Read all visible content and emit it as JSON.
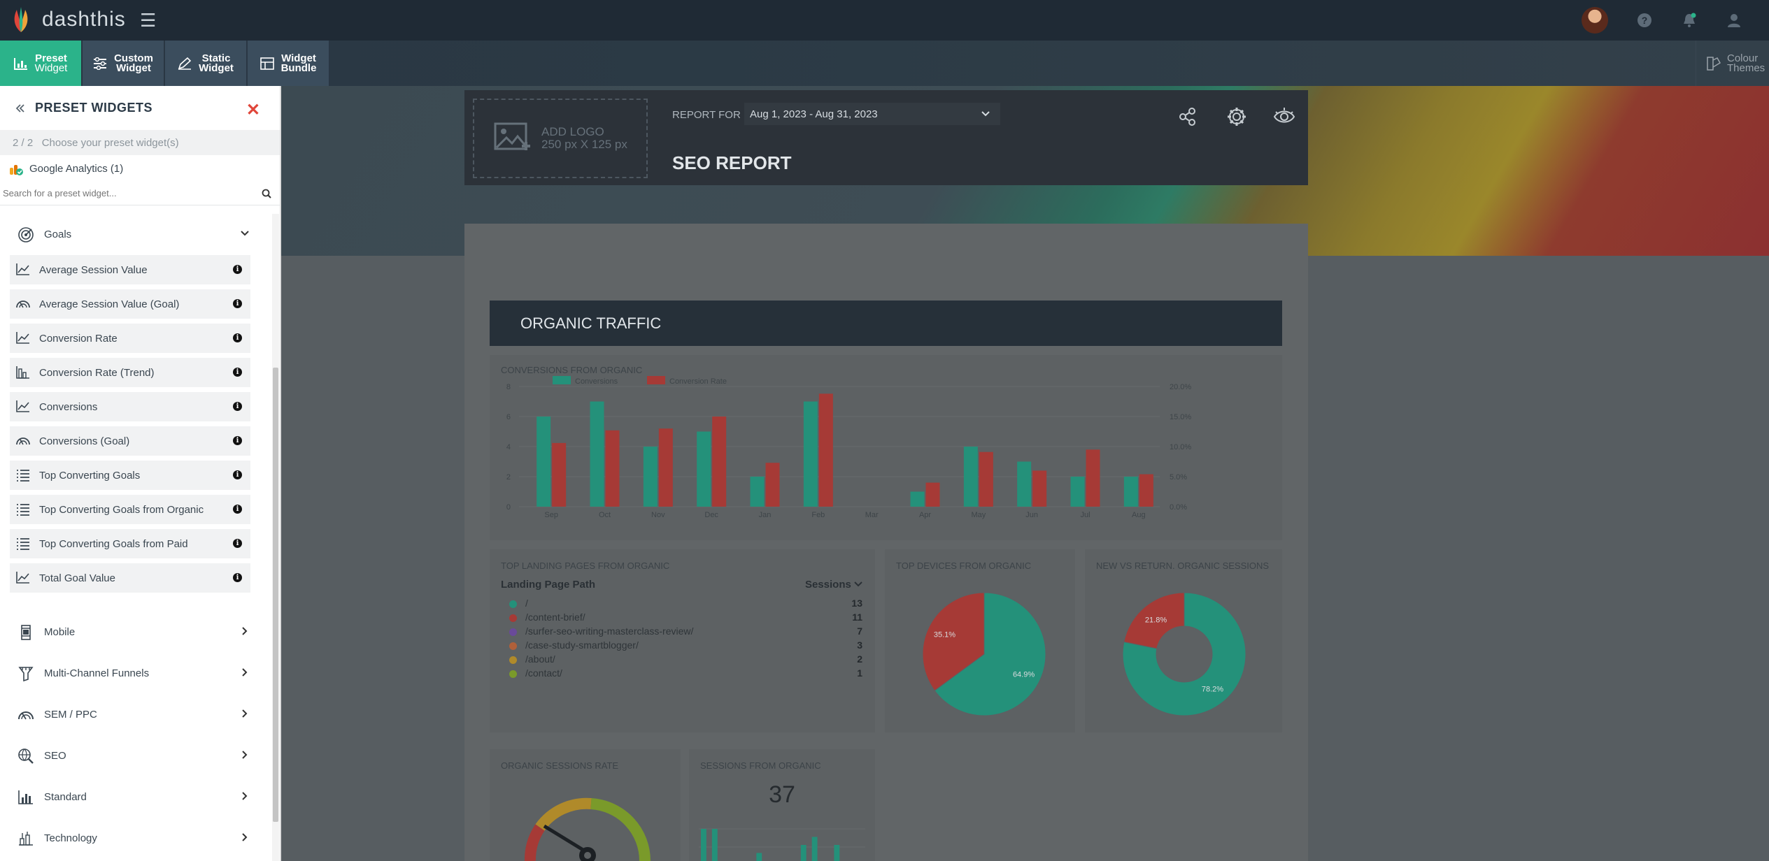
{
  "app": {
    "name": "dashthis"
  },
  "toolbar": {
    "buttons": [
      {
        "line1": "Preset",
        "line2": "Widget"
      },
      {
        "line1": "Custom",
        "line2": "Widget"
      },
      {
        "line1": "Static",
        "line2": "Widget"
      },
      {
        "line1": "Widget",
        "line2": "Bundle"
      }
    ],
    "colour_themes": {
      "line1": "Colour",
      "line2": "Themes"
    }
  },
  "sidebar": {
    "title": "PRESET WIDGETS",
    "step": "2 / 2",
    "step_text": "Choose your preset widget(s)",
    "source": "Google Analytics (1)",
    "search_placeholder": "Search for a preset widget...",
    "expanded_category": "Goals",
    "widgets": [
      {
        "label": "Average Session Value",
        "icon": "line-chart-icon"
      },
      {
        "label": "Average Session Value (Goal)",
        "icon": "gauge-icon"
      },
      {
        "label": "Conversion Rate",
        "icon": "line-chart-icon"
      },
      {
        "label": "Conversion Rate (Trend)",
        "icon": "bar-chart-icon"
      },
      {
        "label": "Conversions",
        "icon": "line-chart-icon"
      },
      {
        "label": "Conversions (Goal)",
        "icon": "gauge-icon"
      },
      {
        "label": "Top Converting Goals",
        "icon": "list-icon"
      },
      {
        "label": "Top Converting Goals from Organic",
        "icon": "list-icon"
      },
      {
        "label": "Top Converting Goals from Paid",
        "icon": "list-icon"
      },
      {
        "label": "Total Goal Value",
        "icon": "line-chart-icon"
      }
    ],
    "categories": [
      "Mobile",
      "Multi-Channel Funnels",
      "SEM / PPC",
      "SEO",
      "Standard",
      "Technology"
    ]
  },
  "report": {
    "add_logo_line1": "ADD LOGO",
    "add_logo_line2": "250 px X 125 px",
    "report_for_label": "REPORT FOR",
    "date_range": "Aug 1, 2023 - Aug 31, 2023",
    "title": "SEO REPORT",
    "section_title": "ORGANIC TRAFFIC"
  },
  "landing_pages": {
    "title": "TOP LANDING PAGES FROM ORGANIC",
    "col1": "Landing Page Path",
    "col2": "Sessions",
    "rows": [
      {
        "path": "/",
        "sessions": "13",
        "color": "#24917a"
      },
      {
        "path": "/content-brief/",
        "sessions": "11",
        "color": "#a63a36"
      },
      {
        "path": "/surfer-seo-writing-masterclass-review/",
        "sessions": "7",
        "color": "#6a4a9a"
      },
      {
        "path": "/case-study-smartblogger/",
        "sessions": "3",
        "color": "#b0603a"
      },
      {
        "path": "/about/",
        "sessions": "2",
        "color": "#b08a2a"
      },
      {
        "path": "/contact/",
        "sessions": "1",
        "color": "#7a9a2a"
      }
    ]
  },
  "widget_titles": {
    "devices": "TOP DEVICES FROM ORGANIC",
    "new_vs_return": "NEW VS RETURN. ORGANIC SESSIONS",
    "sessions_rate": "ORGANIC SESSIONS RATE",
    "sessions_from_organic": "SESSIONS FROM ORGANIC"
  },
  "sessions_from_organic_value": "37",
  "chart_data": [
    {
      "type": "bar",
      "title": "CONVERSIONS FROM ORGANIC",
      "categories": [
        "Sep",
        "Oct",
        "Nov",
        "Dec",
        "Jan",
        "Feb",
        "Mar",
        "Apr",
        "May",
        "Jun",
        "Jul",
        "Aug"
      ],
      "series": [
        {
          "name": "Conversions",
          "color": "#24917a",
          "axis": "left",
          "values": [
            6,
            7,
            4,
            5,
            2,
            7,
            0,
            1,
            4,
            3,
            2,
            2
          ]
        },
        {
          "name": "Conversion Rate",
          "color": "#a63a36",
          "axis": "right",
          "values": [
            10.6,
            12.7,
            13.0,
            15.0,
            7.3,
            18.8,
            0,
            4.0,
            9.1,
            6.0,
            9.5,
            5.4
          ]
        }
      ],
      "ylim": [
        0,
        8
      ],
      "yticks": [
        "0",
        "2",
        "4",
        "6",
        "8"
      ],
      "y2lim": [
        0,
        20
      ],
      "y2ticks": [
        "0.0%",
        "5.0%",
        "10.0%",
        "15.0%",
        "20.0%"
      ]
    },
    {
      "type": "pie",
      "title": "TOP DEVICES FROM ORGANIC",
      "slices": [
        {
          "label": "64.9%",
          "value": 64.9,
          "color": "#24917a"
        },
        {
          "label": "35.1%",
          "value": 35.1,
          "color": "#a63a36"
        }
      ]
    },
    {
      "type": "pie",
      "title": "NEW VS RETURN. ORGANIC SESSIONS",
      "donut": true,
      "slices": [
        {
          "label": "78.2%",
          "value": 78.2,
          "color": "#24917a"
        },
        {
          "label": "21.8%",
          "value": 21.8,
          "color": "#a63a36"
        }
      ]
    },
    {
      "type": "bar",
      "title": "SESSIONS FROM ORGANIC",
      "values": [
        4,
        4,
        0,
        0,
        0,
        1,
        0,
        0,
        0,
        2,
        3,
        0,
        2,
        0,
        0
      ]
    }
  ]
}
